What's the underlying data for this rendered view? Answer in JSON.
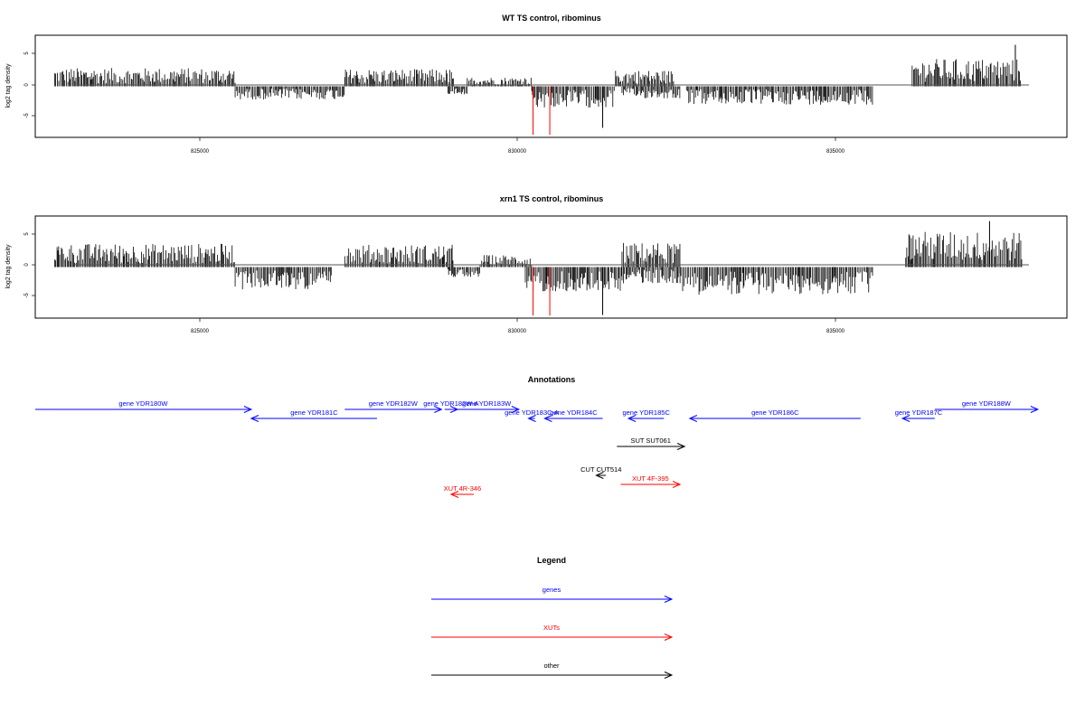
{
  "colors": {
    "gene": "#0000ff",
    "xut": "#ff0000",
    "other": "#000000",
    "bar": "#000000",
    "highlight": "#ff0000"
  },
  "chart_data": [
    {
      "type": "bar",
      "title": "WT TS control, ribominus",
      "ylabel": "log2 tag density",
      "xlim": [
        822700,
        838700
      ],
      "ylim": [
        -8,
        8
      ],
      "xticks": [
        "825000",
        "830000",
        "835000"
      ],
      "yticks": [
        "5",
        "0",
        "-5"
      ],
      "signal_regions": [
        {
          "from": 823000,
          "to": 825800,
          "strand": "+",
          "mean": 1.8
        },
        {
          "from": 825800,
          "to": 827500,
          "strand": "-",
          "mean": -1.3
        },
        {
          "from": 827500,
          "to": 829200,
          "strand": "+",
          "mean": 1.7
        },
        {
          "from": 829100,
          "to": 829400,
          "strand": "-",
          "mean": -0.8
        },
        {
          "from": 829400,
          "to": 830400,
          "strand": "+",
          "mean": 0.9
        },
        {
          "from": 830400,
          "to": 831700,
          "strand": "-",
          "mean": -2.1
        },
        {
          "from": 831700,
          "to": 832600,
          "strand": "+",
          "mean": 1.6
        },
        {
          "from": 831800,
          "to": 832700,
          "strand": "-",
          "mean": -1.2
        },
        {
          "from": 832800,
          "to": 835700,
          "strand": "-",
          "mean": -1.8
        },
        {
          "from": 836300,
          "to": 838000,
          "strand": "+",
          "mean": 2.7
        }
      ],
      "red_bars": [
        {
          "x": 830420,
          "y": -7.6
        },
        {
          "x": 830680,
          "y": -7.6
        }
      ],
      "peaks": [
        {
          "x": 831500,
          "y": -6.5
        },
        {
          "x": 837900,
          "y": 6.5
        }
      ]
    },
    {
      "type": "bar",
      "title": "xrn1 TS control, ribominus",
      "ylabel": "log2 tag density",
      "xlim": [
        822700,
        838700
      ],
      "ylim": [
        -8,
        8
      ],
      "xticks": [
        "825000",
        "830000",
        "835000"
      ],
      "yticks": [
        "5",
        "0",
        "-5"
      ],
      "signal_regions": [
        {
          "from": 823000,
          "to": 825800,
          "strand": "+",
          "mean": 2.3
        },
        {
          "from": 825800,
          "to": 827300,
          "strand": "-",
          "mean": -2.2
        },
        {
          "from": 827500,
          "to": 829200,
          "strand": "+",
          "mean": 2.2
        },
        {
          "from": 829100,
          "to": 829600,
          "strand": "-",
          "mean": -1.0
        },
        {
          "from": 829600,
          "to": 830400,
          "strand": "+",
          "mean": 1.2
        },
        {
          "from": 830300,
          "to": 831800,
          "strand": "-",
          "mean": -2.4
        },
        {
          "from": 831800,
          "to": 832700,
          "strand": "+",
          "mean": 2.4
        },
        {
          "from": 831800,
          "to": 832700,
          "strand": "-",
          "mean": -1.6
        },
        {
          "from": 832700,
          "to": 835700,
          "strand": "-",
          "mean": -2.7
        },
        {
          "from": 836200,
          "to": 838000,
          "strand": "+",
          "mean": 3.5
        }
      ],
      "red_bars": [
        {
          "x": 830420,
          "y": -7.6
        },
        {
          "x": 830680,
          "y": -7.6
        }
      ],
      "peaks": [
        {
          "x": 831500,
          "y": -7.5
        },
        {
          "x": 837500,
          "y": 7.2
        }
      ]
    }
  ],
  "annotations": {
    "title": "Annotations",
    "features": [
      {
        "label": "gene YDR180W",
        "type": "gene",
        "strand": "+",
        "start": 822700,
        "end": 826050,
        "row": 0
      },
      {
        "label": "gene YDR181C",
        "type": "gene",
        "strand": "-",
        "start": 826050,
        "end": 828000,
        "row": 1
      },
      {
        "label": "gene YDR182W",
        "type": "gene",
        "strand": "+",
        "start": 827500,
        "end": 829000,
        "row": 0
      },
      {
        "label": "gene YDR182W-A",
        "type": "gene",
        "strand": "+",
        "start": 829050,
        "end": 829250,
        "row": 0
      },
      {
        "label": "gene YDR183W",
        "type": "gene",
        "strand": "+",
        "start": 829200,
        "end": 830200,
        "row": 0
      },
      {
        "label": "gene YDR183C-A",
        "type": "gene",
        "strand": "-",
        "start": 830350,
        "end": 830450,
        "row": 1
      },
      {
        "label": "gene YDR184C",
        "type": "gene",
        "strand": "-",
        "start": 830600,
        "end": 831500,
        "row": 1
      },
      {
        "label": "gene YDR185C",
        "type": "gene",
        "strand": "-",
        "start": 831900,
        "end": 832450,
        "row": 1
      },
      {
        "label": "gene YDR186C",
        "type": "gene",
        "strand": "-",
        "start": 832850,
        "end": 835500,
        "row": 1
      },
      {
        "label": "gene YDR187C",
        "type": "gene",
        "strand": "-",
        "start": 836150,
        "end": 836650,
        "row": 1
      },
      {
        "label": "gene YDR188W",
        "type": "gene",
        "strand": "+",
        "start": 836650,
        "end": 838250,
        "row": 0
      },
      {
        "label": "SUT SUT061",
        "type": "other",
        "strand": "+",
        "start": 831720,
        "end": 832770,
        "row": 3
      },
      {
        "label": "CUT CUT514",
        "type": "other",
        "strand": "-",
        "start": 831400,
        "end": 831550,
        "row": 4
      },
      {
        "label": "XUT 4F-395",
        "type": "xut",
        "strand": "+",
        "start": 831780,
        "end": 832700,
        "row": 5
      },
      {
        "label": "XUT 4R-346",
        "type": "xut",
        "strand": "-",
        "start": 829150,
        "end": 829500,
        "row": 6
      }
    ]
  },
  "legend": {
    "title": "Legend",
    "items": [
      {
        "label": "genes",
        "type": "gene"
      },
      {
        "label": "XUTs",
        "type": "xut"
      },
      {
        "label": "other",
        "type": "other"
      }
    ]
  }
}
